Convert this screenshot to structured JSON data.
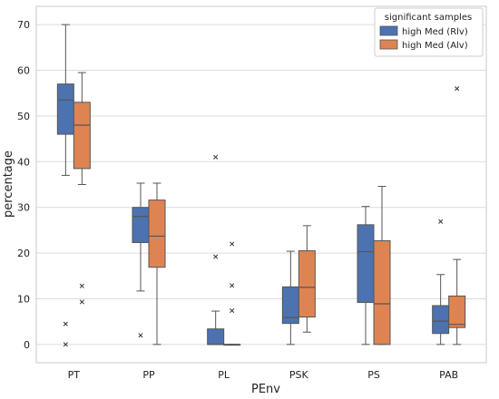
{
  "chart_data": {
    "type": "box",
    "xlabel": "PEnv",
    "ylabel": "percentage",
    "ylim": [
      -4,
      74
    ],
    "yticks": [
      0,
      10,
      20,
      30,
      40,
      50,
      60,
      70
    ],
    "grid": "horizontal",
    "legend": {
      "placement": "top-right",
      "title": "significant samples"
    },
    "categories": [
      "PT",
      "PP",
      "PL",
      "PSK",
      "PS",
      "PAB"
    ],
    "series": [
      {
        "name": "high Med (Rlv)",
        "color": "#4c72b0",
        "boxes": [
          {
            "whislo": 37,
            "q1": 46,
            "med": 53.5,
            "q3": 57,
            "whishi": 70,
            "fliers": [
              4.5,
              0
            ]
          },
          {
            "whislo": 11.7,
            "q1": 22.3,
            "med": 28,
            "q3": 30,
            "whishi": 35.3,
            "fliers": [
              2
            ]
          },
          {
            "whislo": 0,
            "q1": 0,
            "med": 0,
            "q3": 3.4,
            "whishi": 7.3,
            "fliers": [
              19.2,
              41
            ]
          },
          {
            "whislo": 0,
            "q1": 4.6,
            "med": 5.9,
            "q3": 12.6,
            "whishi": 20.4,
            "fliers": []
          },
          {
            "whislo": 0,
            "q1": 9.2,
            "med": 20.3,
            "q3": 26.2,
            "whishi": 30.2,
            "fliers": []
          },
          {
            "whislo": 0,
            "q1": 2.4,
            "med": 5.1,
            "q3": 8.5,
            "whishi": 15.3,
            "fliers": [
              26.9
            ]
          }
        ]
      },
      {
        "name": "high Med (Alv)",
        "color": "#dd8452",
        "boxes": [
          {
            "whislo": 35,
            "q1": 38.5,
            "med": 48,
            "q3": 53,
            "whishi": 59.5,
            "fliers": [
              12.8,
              9.3
            ]
          },
          {
            "whislo": 0,
            "q1": 16.9,
            "med": 23.7,
            "q3": 31.6,
            "whishi": 35.3,
            "fliers": []
          },
          {
            "whislo": 0,
            "q1": 0,
            "med": 0,
            "q3": 0,
            "whishi": 0,
            "fliers": [
              22,
              12.9,
              7.4
            ]
          },
          {
            "whislo": 2.7,
            "q1": 6,
            "med": 12.5,
            "q3": 20.5,
            "whishi": 26,
            "fliers": []
          },
          {
            "whislo": 0,
            "q1": 0,
            "med": 8.9,
            "q3": 22.7,
            "whishi": 34.6,
            "fliers": []
          },
          {
            "whislo": 0,
            "q1": 3.7,
            "med": 4.4,
            "q3": 10.6,
            "whishi": 18.6,
            "fliers": [
              56
            ]
          }
        ]
      }
    ]
  }
}
